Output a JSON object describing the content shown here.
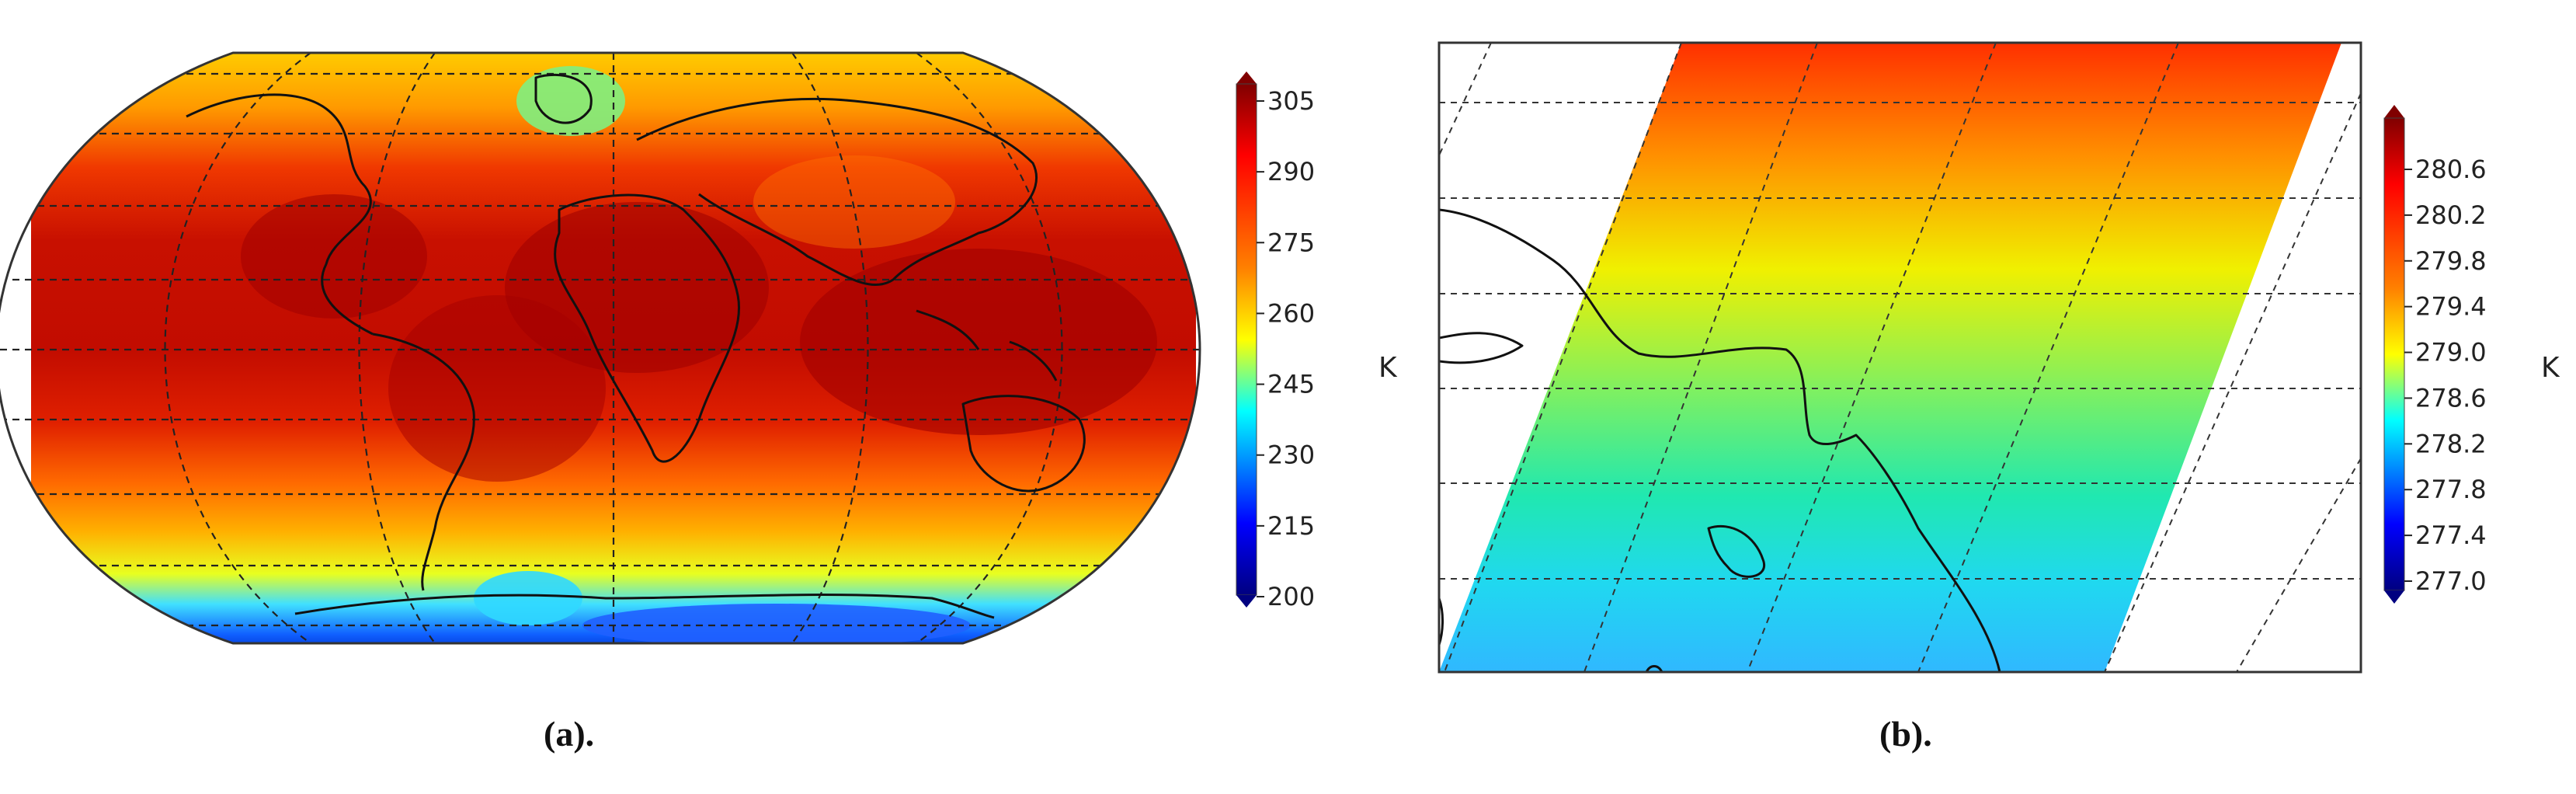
{
  "panels": [
    {
      "id": "a",
      "caption": "(a).",
      "colorbar": {
        "unit": "K",
        "ticks": [
          "305",
          "290",
          "275",
          "260",
          "245",
          "230",
          "215",
          "200"
        ],
        "range": [
          200,
          305
        ],
        "colormap": "jet"
      },
      "map": {
        "projection": "robinson",
        "content": "global temperature field",
        "gridlines": true
      }
    },
    {
      "id": "b",
      "caption": "(b).",
      "colorbar": {
        "unit": "K",
        "ticks": [
          "280.6",
          "280.2",
          "279.8",
          "279.4",
          "279.0",
          "278.6",
          "278.2",
          "277.8",
          "277.4",
          "277.0"
        ],
        "range": [
          277.0,
          280.8
        ],
        "colormap": "jet"
      },
      "map": {
        "content": "regional swath temperature field",
        "gridlines": true
      }
    }
  ],
  "colors": {
    "jet_dark_red": "#800000",
    "jet_red": "#ff0000",
    "jet_orange": "#ff8000",
    "jet_yellow": "#ffff00",
    "jet_cyan": "#00ffff",
    "jet_blue": "#0000ff",
    "jet_dark_blue": "#000080"
  }
}
